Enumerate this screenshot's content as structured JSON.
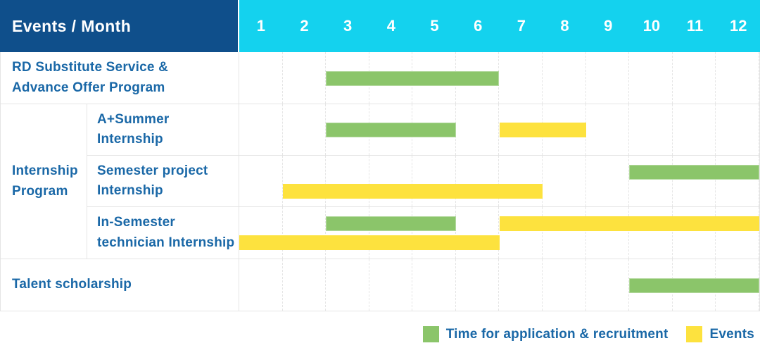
{
  "header": {
    "title": "Events / Month"
  },
  "colors": {
    "header_navy": "#0f4f8b",
    "header_cyan": "#14d2ee",
    "bar_green": "#8bc56a",
    "bar_yellow": "#fde23e",
    "label_blue": "#1a68a7"
  },
  "legend": {
    "items": [
      {
        "label": "Time for application & recruitment",
        "color": "green"
      },
      {
        "label": "Events",
        "color": "yellow"
      }
    ]
  },
  "chart_data": {
    "type": "gantt",
    "title": "Events / Month",
    "months": [
      "1",
      "2",
      "3",
      "4",
      "5",
      "6",
      "7",
      "8",
      "9",
      "10",
      "11",
      "12"
    ],
    "x_range": [
      1,
      12
    ],
    "legend_position": "bottom-right",
    "grid": "dashed-vertical-month-lines",
    "rows": [
      {
        "label": "RD Substitute Service &\nAdvance Offer Program",
        "group": null,
        "bars": [
          {
            "kind": "application_recruitment",
            "color": "green",
            "start_month": 3,
            "end_month": 6,
            "lane": "center"
          }
        ]
      },
      {
        "label": "A+Summer\nInternship",
        "group": "Internship\nProgram",
        "bars": [
          {
            "kind": "application_recruitment",
            "color": "green",
            "start_month": 3,
            "end_month": 5,
            "lane": "center"
          },
          {
            "kind": "event",
            "color": "yellow",
            "start_month": 7,
            "end_month": 8,
            "lane": "center"
          }
        ]
      },
      {
        "label": "Semester project\nInternship",
        "group": "Internship\nProgram",
        "bars": [
          {
            "kind": "application_recruitment",
            "color": "green",
            "start_month": 10,
            "end_month": 12,
            "lane": "top"
          },
          {
            "kind": "event",
            "color": "yellow",
            "start_month": 2,
            "end_month": 7,
            "lane": "bottom"
          }
        ]
      },
      {
        "label": "In-Semester\ntechnician Internship",
        "group": "Internship\nProgram",
        "bars": [
          {
            "kind": "application_recruitment",
            "color": "green",
            "start_month": 3,
            "end_month": 5,
            "lane": "top"
          },
          {
            "kind": "event",
            "color": "yellow",
            "start_month": 7,
            "end_month": 12,
            "lane": "top"
          },
          {
            "kind": "event",
            "color": "yellow",
            "start_month": 1,
            "end_month": 6,
            "lane": "bottom"
          }
        ]
      },
      {
        "label": "Talent scholarship",
        "group": null,
        "bars": [
          {
            "kind": "application_recruitment",
            "color": "green",
            "start_month": 10,
            "end_month": 12,
            "lane": "center"
          }
        ]
      }
    ]
  }
}
